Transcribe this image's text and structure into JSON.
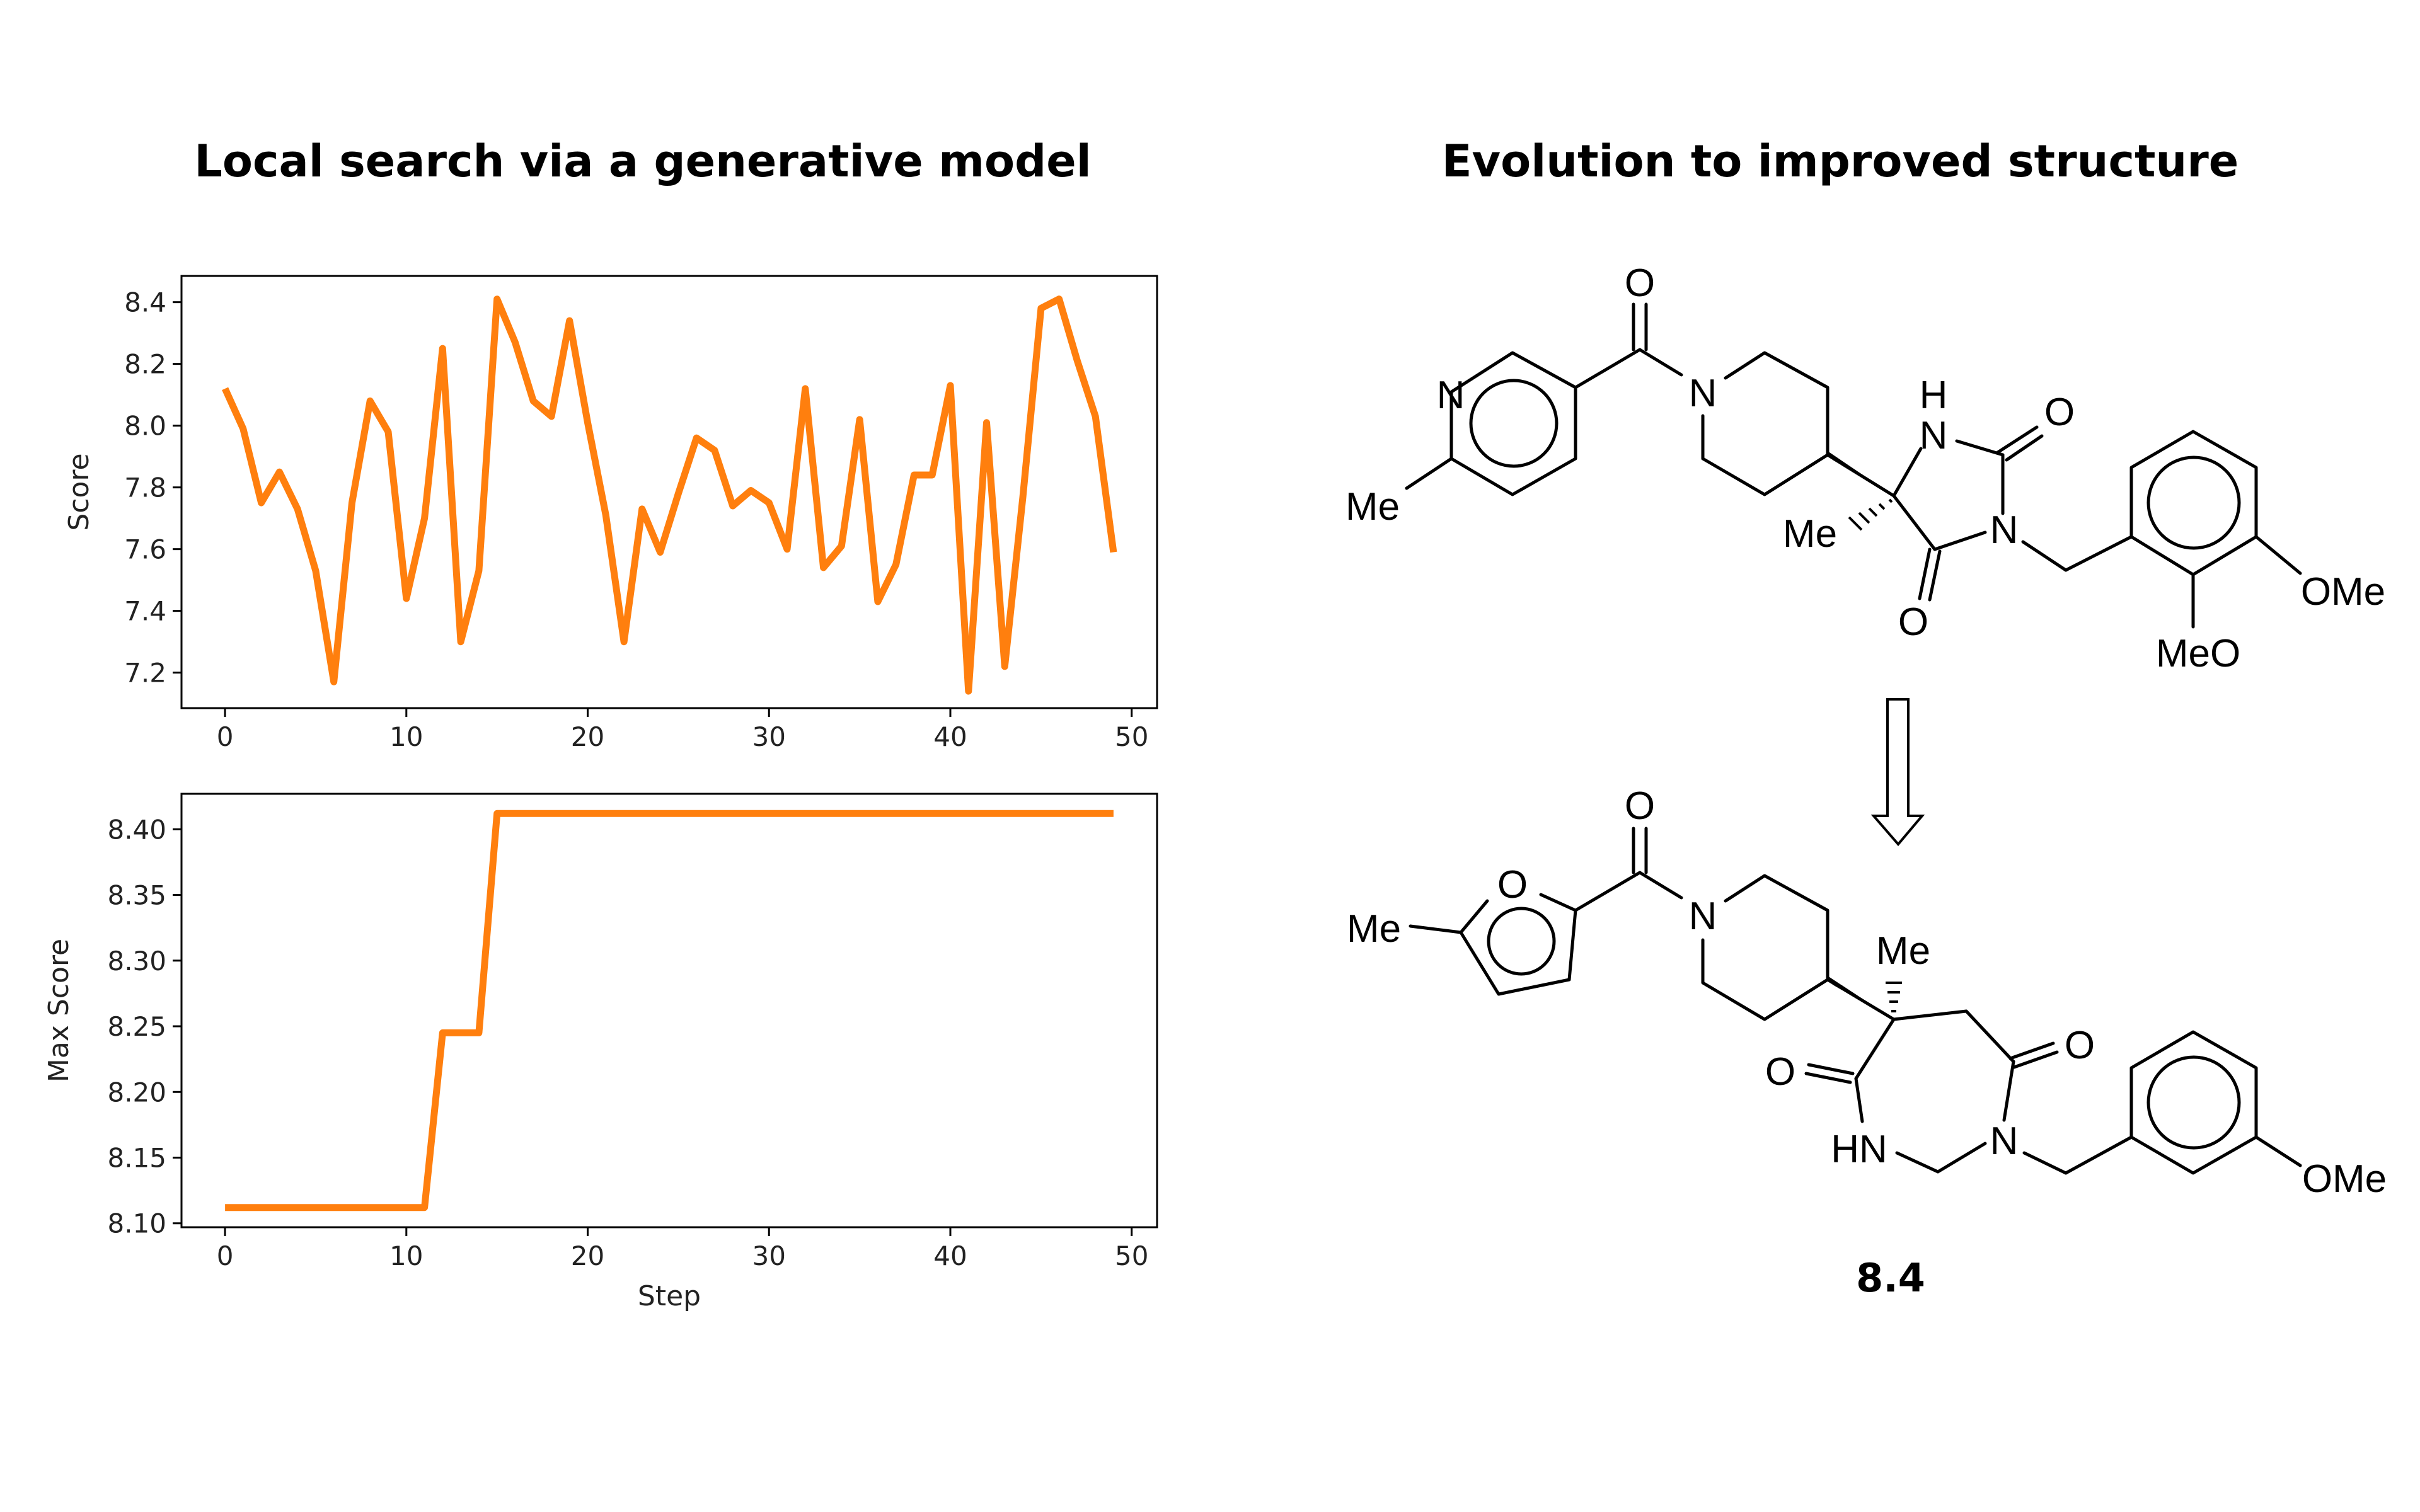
{
  "titles": {
    "left": "Local search via a generative model",
    "right": "Evolution to improved structure"
  },
  "chart_data": [
    {
      "type": "line",
      "xlabel": "",
      "ylabel": "Score",
      "xlim": [
        -2.4,
        51.4
      ],
      "ylim": [
        7.085,
        8.485
      ],
      "xticks": [
        0,
        10,
        20,
        30,
        40,
        50
      ],
      "yticks": [
        7.2,
        7.4,
        7.6,
        7.8,
        8.0,
        8.2,
        8.4
      ],
      "ytick_decimals": 1,
      "color": "#ff7f0e",
      "series": [
        {
          "x": [
            0,
            1,
            2,
            3,
            4,
            5,
            6,
            7,
            8,
            9,
            10,
            11,
            12,
            13,
            14,
            15,
            16,
            17,
            18,
            19,
            20,
            21,
            22,
            23,
            24,
            25,
            26,
            27,
            28,
            29,
            30,
            31,
            32,
            33,
            34,
            35,
            36,
            37,
            38,
            39,
            40,
            41,
            42,
            43,
            44,
            45,
            46,
            47,
            48,
            49
          ],
          "values": [
            8.12,
            7.99,
            7.75,
            7.85,
            7.73,
            7.53,
            7.17,
            7.75,
            8.08,
            7.98,
            7.44,
            7.7,
            8.25,
            7.3,
            7.53,
            8.41,
            8.27,
            8.08,
            8.03,
            8.34,
            8.01,
            7.71,
            7.3,
            7.73,
            7.59,
            7.78,
            7.96,
            7.92,
            7.74,
            7.79,
            7.75,
            7.6,
            8.12,
            7.54,
            7.61,
            8.02,
            7.43,
            7.55,
            7.84,
            7.84,
            8.13,
            7.14,
            8.01,
            7.22,
            7.77,
            8.38,
            8.41,
            8.21,
            8.03,
            7.59
          ]
        }
      ]
    },
    {
      "type": "line",
      "xlabel": "Step",
      "ylabel": "Max Score",
      "xlim": [
        -2.4,
        51.4
      ],
      "ylim": [
        8.097,
        8.427
      ],
      "xticks": [
        0,
        10,
        20,
        30,
        40,
        50
      ],
      "yticks": [
        8.1,
        8.15,
        8.2,
        8.25,
        8.3,
        8.35,
        8.4
      ],
      "ytick_decimals": 2,
      "color": "#ff7f0e",
      "series": [
        {
          "x": [
            0,
            1,
            2,
            3,
            4,
            5,
            6,
            7,
            8,
            9,
            10,
            11,
            12,
            13,
            14,
            15,
            16,
            17,
            18,
            19,
            20,
            21,
            22,
            23,
            24,
            25,
            26,
            27,
            28,
            29,
            30,
            31,
            32,
            33,
            34,
            35,
            36,
            37,
            38,
            39,
            40,
            41,
            42,
            43,
            44,
            45,
            46,
            47,
            48,
            49
          ],
          "values": [
            8.112,
            8.112,
            8.112,
            8.112,
            8.112,
            8.112,
            8.112,
            8.112,
            8.112,
            8.112,
            8.112,
            8.112,
            8.245,
            8.245,
            8.245,
            8.412,
            8.412,
            8.412,
            8.412,
            8.412,
            8.412,
            8.412,
            8.412,
            8.412,
            8.412,
            8.412,
            8.412,
            8.412,
            8.412,
            8.412,
            8.412,
            8.412,
            8.412,
            8.412,
            8.412,
            8.412,
            8.412,
            8.412,
            8.412,
            8.412,
            8.412,
            8.412,
            8.412,
            8.412,
            8.412,
            8.412,
            8.412,
            8.412,
            8.412,
            8.412
          ]
        }
      ]
    }
  ],
  "molecules": {
    "top": {
      "o_carbonyl": "O",
      "n_pyridine": "N",
      "me_pyridine": "Me",
      "n_piperidine": "N",
      "h_imide": "H",
      "n_imide_nh": "N",
      "o_urea": "O",
      "me_quaternary": "Me",
      "n_imide": "N",
      "o_imide": "O",
      "ome_right": "OMe",
      "ome_left": "MeO"
    },
    "bottom": {
      "o_carbonyl": "O",
      "o_furan": "O",
      "me_furan": "Me",
      "n_piperidine": "N",
      "me_quaternary": "Me",
      "o_left": "O",
      "o_right": "O",
      "hn": "HN",
      "n_ring": "N",
      "ome": "OMe"
    },
    "score": "8.4"
  }
}
